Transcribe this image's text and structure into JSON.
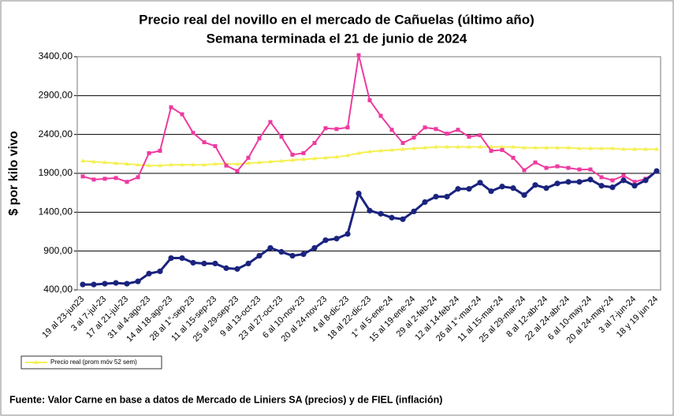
{
  "chart_data": {
    "type": "line",
    "title": "Precio real del novillo en el mercado de Cañuelas (último año)",
    "subtitle": "Semana terminada el 21 de junio de 2024",
    "y_label": "$ por kilo vivo",
    "source": "Fuente: Valor Carne en base a datos de Mercado de Liniers SA (precios) y de FIEL (inflación)",
    "categories": [
      "19 al 23-jun23",
      null,
      "3 al 7-jul-23",
      null,
      "17 al 21-jul-23",
      null,
      "31 al 4-ago-23",
      null,
      "14 al 18-ago-23",
      null,
      "28 al 1°-sep-23",
      null,
      "11 al 15-sep-23",
      null,
      "25 al 29-sep-23",
      null,
      "9 al 13-oct-23",
      null,
      "23 al 27-oct-23",
      null,
      "6 al 10-nov-23",
      null,
      "20 al 24-nov-23",
      null,
      "4 al 8-dic-23",
      null,
      "18 al 22-dic-23",
      null,
      "1° al 5-ene-24",
      null,
      "15 al 19-ene-24",
      null,
      "29 al 2-feb-24",
      null,
      "12 al 14-feb-24",
      null,
      "26 al 1°-mar-24",
      null,
      "11 al 15-mar-24",
      null,
      "25 al 29-mar-24",
      null,
      "8 al 12-abr-24",
      null,
      "22 al 24-abr-24",
      null,
      "6 al 10-may-24",
      null,
      "20 al 24-may-24",
      null,
      "3 al 7-jun-24",
      null,
      "18 y 19 jun 24"
    ],
    "series": [
      {
        "color": "#ee3aa0",
        "marker": "square",
        "values": [
          1860,
          1820,
          1830,
          1840,
          1790,
          1850,
          2160,
          2190,
          2750,
          2660,
          2420,
          2300,
          2250,
          2000,
          1930,
          2100,
          2350,
          2560,
          2370,
          2140,
          2160,
          2290,
          2480,
          2470,
          2490,
          3420,
          2840,
          2640,
          2460,
          2290,
          2360,
          2490,
          2470,
          2410,
          2460,
          2370,
          2390,
          2190,
          2200,
          2100,
          1940,
          2040,
          1970,
          1990,
          1970,
          1950,
          1950,
          1850,
          1810,
          1870,
          1790,
          1830,
          1930
        ]
      },
      {
        "color": "#1a237e",
        "marker": "circle",
        "values": [
          470,
          470,
          480,
          490,
          480,
          510,
          610,
          640,
          810,
          810,
          750,
          740,
          740,
          680,
          670,
          740,
          840,
          940,
          890,
          840,
          860,
          940,
          1040,
          1060,
          1120,
          1640,
          1420,
          1380,
          1330,
          1310,
          1410,
          1530,
          1600,
          1600,
          1700,
          1700,
          1780,
          1670,
          1730,
          1710,
          1620,
          1750,
          1710,
          1770,
          1790,
          1790,
          1820,
          1740,
          1720,
          1810,
          1740,
          1810,
          1930
        ]
      },
      {
        "name": "Precio real (prom móv 52 sem)",
        "color": "#f5f055",
        "marker": "triangle",
        "values": [
          2060,
          2050,
          2040,
          2030,
          2020,
          2010,
          2000,
          2000,
          2010,
          2010,
          2010,
          2010,
          2020,
          2020,
          2020,
          2030,
          2040,
          2050,
          2060,
          2070,
          2080,
          2090,
          2100,
          2110,
          2130,
          2160,
          2180,
          2190,
          2200,
          2210,
          2220,
          2230,
          2240,
          2240,
          2240,
          2240,
          2240,
          2240,
          2240,
          2240,
          2230,
          2230,
          2230,
          2230,
          2230,
          2220,
          2220,
          2220,
          2220,
          2210,
          2210,
          2210,
          2210
        ]
      }
    ],
    "ylim": [
      400,
      3400
    ],
    "yticks": [
      {
        "value": 400,
        "label": "400,00"
      },
      {
        "value": 900,
        "label": "900,00"
      },
      {
        "value": 1400,
        "label": "1400,00"
      },
      {
        "value": 1900,
        "label": "1900,00"
      },
      {
        "value": 2400,
        "label": "2400,00"
      },
      {
        "value": 2900,
        "label": "2900,00"
      },
      {
        "value": 3400,
        "label": "3400,00"
      }
    ],
    "grid": true,
    "legend": "bottom-left"
  }
}
